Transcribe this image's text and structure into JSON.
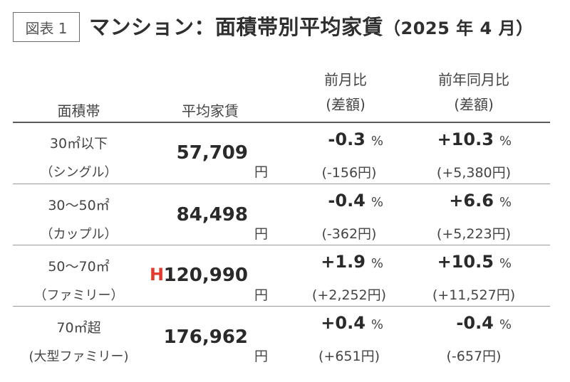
{
  "figure_label": "図表 1",
  "title": "マンション：面積帯別平均家賃",
  "title_date": "（2025 年 4 月）",
  "headers": {
    "area": "面積帯",
    "rent": "平均家賃",
    "mom": "前月比",
    "mom_sub": "(差額)",
    "yoy": "前年同月比",
    "yoy_sub": "(差額)"
  },
  "rows": [
    {
      "area": "30㎡以下",
      "type": "（シングル）",
      "rent": "57,709",
      "yen": "円",
      "mom_pct": "-0.3",
      "mom_unit": "%",
      "mom_diff": "(-156円)",
      "yoy_pct": "+10.3",
      "yoy_unit": "%",
      "yoy_diff": "(+5,380円)",
      "mark": ""
    },
    {
      "area": "30～50㎡",
      "type": "（カップル）",
      "rent": "84,498",
      "yen": "円",
      "mom_pct": "-0.4",
      "mom_unit": "%",
      "mom_diff": "(-362円)",
      "yoy_pct": "+6.6",
      "yoy_unit": "%",
      "yoy_diff": "(+5,223円)",
      "mark": ""
    },
    {
      "area": "50～70㎡",
      "type": "（ファミリー）",
      "rent": "120,990",
      "yen": "円",
      "mom_pct": "+1.9",
      "mom_unit": "%",
      "mom_diff": "(+2,252円)",
      "yoy_pct": "+10.5",
      "yoy_unit": "%",
      "yoy_diff": "(+11,527円)",
      "mark": "H"
    },
    {
      "area": "70㎡超",
      "type": "(大型ファミリー)",
      "rent": "176,962",
      "yen": "円",
      "mom_pct": "+0.4",
      "mom_unit": "%",
      "mom_diff": "(+651円)",
      "yoy_pct": "-0.4",
      "yoy_unit": "%",
      "yoy_diff": "(-657円)",
      "mark": ""
    }
  ],
  "colors": {
    "high_mark": "#e33a2c"
  }
}
